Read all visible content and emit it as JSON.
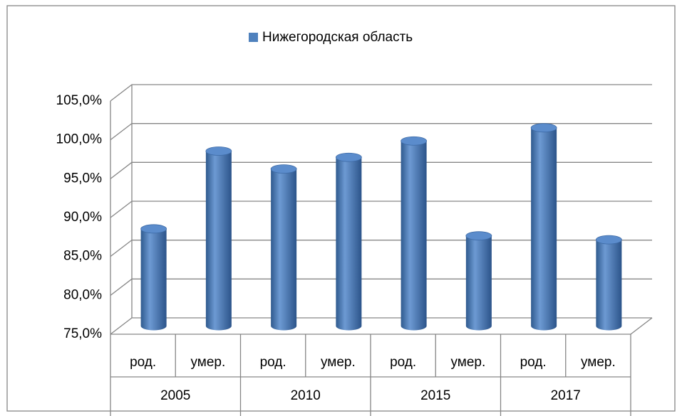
{
  "chart_data": {
    "type": "bar3d",
    "series": [
      {
        "name": "Нижегородская область",
        "color": "#4f81bd",
        "values": [
          87.5,
          97.5,
          95.2,
          96.7,
          98.8,
          86.6,
          100.5,
          86.1
        ]
      }
    ],
    "categories": [
      "род.",
      "умер.",
      "род.",
      "умер.",
      "род.",
      "умер.",
      "род.",
      "умер."
    ],
    "category_groups": [
      "2005",
      "2010",
      "2015",
      "2017"
    ],
    "ylim": [
      75,
      105
    ],
    "yticks": [
      {
        "value": 75,
        "label": "75,0%"
      },
      {
        "value": 80,
        "label": "80,0%"
      },
      {
        "value": 85,
        "label": "85,0%"
      },
      {
        "value": 90,
        "label": "90,0%"
      },
      {
        "value": 95,
        "label": "95,0%"
      },
      {
        "value": 100,
        "label": "100,0%"
      },
      {
        "value": 105,
        "label": "105,0%"
      }
    ],
    "grid": true,
    "legend": "top"
  }
}
